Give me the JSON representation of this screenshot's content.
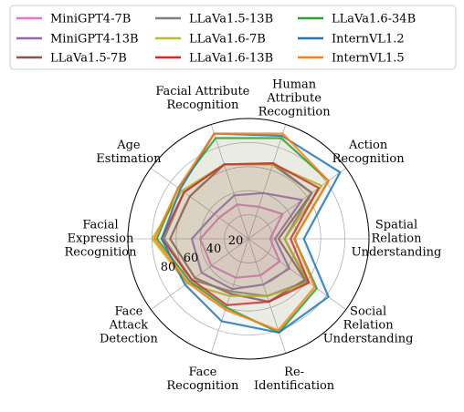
{
  "chart_data": {
    "type": "radar",
    "title": "",
    "axes": [
      [
        "Human",
        "Attribute",
        "Recognition"
      ],
      [
        "Facial Attribute",
        "Recognition"
      ],
      [
        "Age",
        "Estimation"
      ],
      [
        "Facial",
        "Expression",
        "Recognition"
      ],
      [
        "Face",
        "Attack",
        "Detection"
      ],
      [
        "Face",
        "Recognition"
      ],
      [
        "Re-",
        "Identification"
      ],
      [
        "Social",
        "Relation",
        "Understanding"
      ],
      [
        "Spatial",
        "Relation",
        "Understanding"
      ],
      [
        "Action",
        "Recognition"
      ]
    ],
    "radial_ticks": [
      20,
      40,
      60,
      80
    ],
    "rlim": [
      0,
      100
    ],
    "grid": true,
    "legend": {
      "position": "top",
      "columns": 3
    },
    "series": [
      {
        "name": "MiniGPT4-7B",
        "color": "#e377c2",
        "values": [
          28,
          30,
          30,
          40,
          38,
          34,
          32,
          32,
          18,
          35
        ]
      },
      {
        "name": "MiniGPT4-13B",
        "color": "#9467bd",
        "values": [
          40,
          38,
          35,
          47,
          48,
          44,
          40,
          42,
          22,
          55
        ]
      },
      {
        "name": "LLaVa1.5-7B",
        "color": "#8c564b",
        "values": [
          65,
          65,
          60,
          65,
          55,
          48,
          55,
          58,
          25,
          65
        ]
      },
      {
        "name": "LLaVa1.5-13B",
        "color": "#7f7f7f",
        "values": [
          66,
          65,
          66,
          70,
          58,
          46,
          50,
          60,
          30,
          65
        ]
      },
      {
        "name": "LLaVa1.6-7B",
        "color": "#bcbd22",
        "values": [
          65,
          65,
          68,
          80,
          63,
          50,
          50,
          62,
          30,
          75
        ]
      },
      {
        "name": "LLaVa1.6-13B",
        "color": "#d62728",
        "values": [
          66,
          65,
          66,
          72,
          58,
          58,
          55,
          62,
          35,
          72
        ]
      },
      {
        "name": "LLaVa1.6-34B",
        "color": "#2ca02c",
        "values": [
          88,
          88,
          72,
          76,
          60,
          60,
          82,
          70,
          38,
          82
        ]
      },
      {
        "name": "InternVL1.2",
        "color": "#1f77b4",
        "values": [
          90,
          92,
          70,
          72,
          65,
          72,
          82,
          82,
          46,
          94
        ]
      },
      {
        "name": "InternVL1.5",
        "color": "#ff7f0e",
        "values": [
          92,
          92,
          72,
          78,
          62,
          62,
          80,
          68,
          38,
          82
        ]
      }
    ]
  }
}
